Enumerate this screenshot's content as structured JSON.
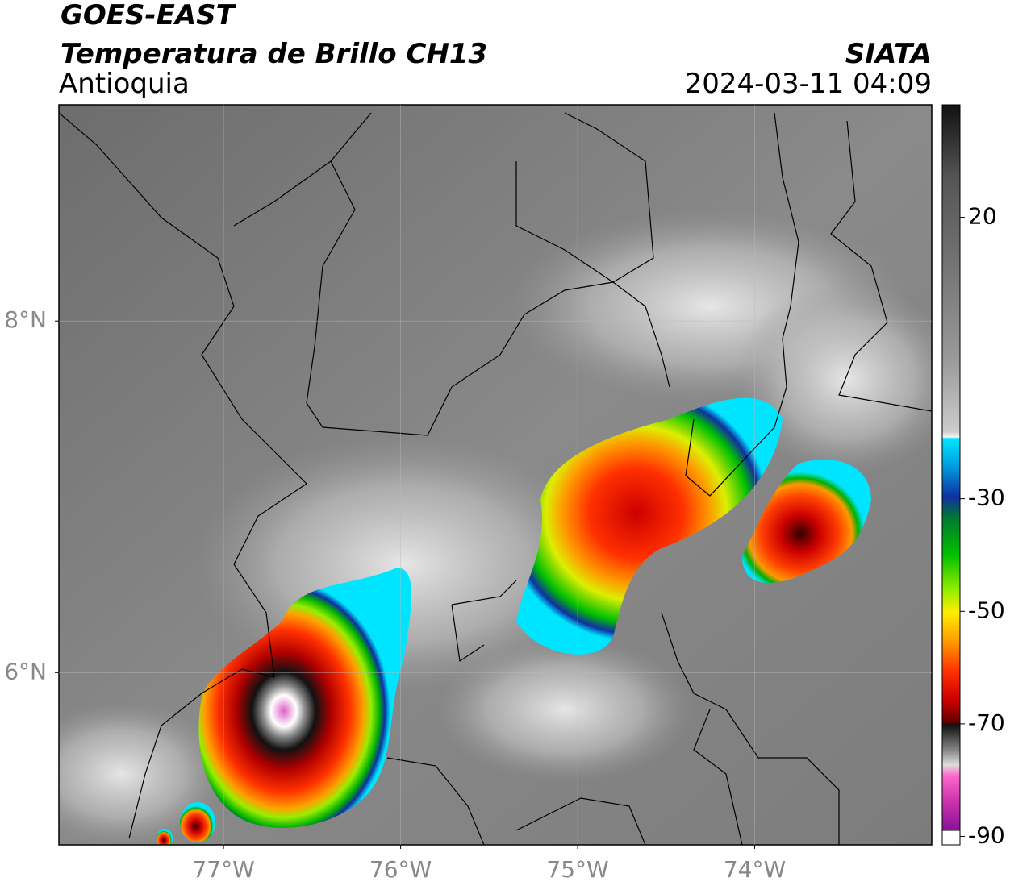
{
  "header": {
    "title": "GOES-EAST",
    "subtitle": "Temperatura de Brillo CH13",
    "region": "Antioquia",
    "source": "SIATA",
    "datetime": "2024-03-11 04:09"
  },
  "map": {
    "lonlim": [
      -77.93,
      -73.0
    ],
    "latlim": [
      5.02,
      9.23
    ],
    "grid": true,
    "lon_ticks": [
      {
        "value": -77,
        "label": "77°W"
      },
      {
        "value": -76,
        "label": "76°W"
      },
      {
        "value": -75,
        "label": "75°W"
      },
      {
        "value": -74,
        "label": "74°W"
      }
    ],
    "lat_ticks": [
      {
        "value": 6,
        "label": "6°N"
      },
      {
        "value": 8,
        "label": "8°N"
      }
    ]
  },
  "colorbar": {
    "lim": [
      -91.5,
      40
    ],
    "ticks": [
      20,
      -30,
      -50,
      -70,
      -90
    ]
  }
}
